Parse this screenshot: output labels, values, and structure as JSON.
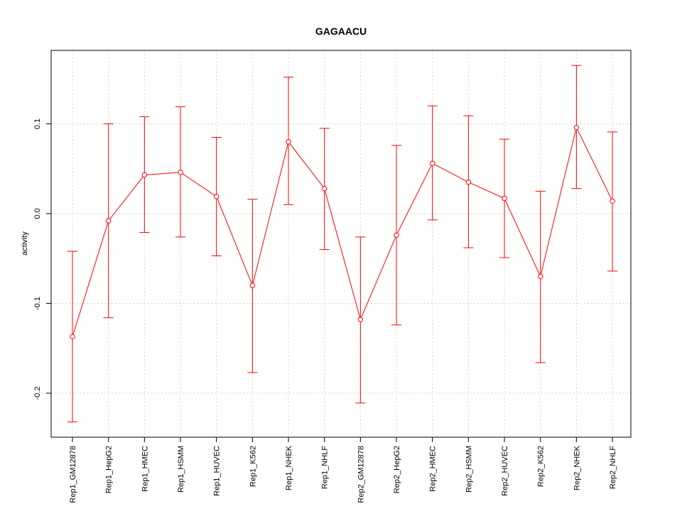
{
  "chart_data": {
    "type": "line",
    "title": "GAGAACU",
    "xlabel": "",
    "ylabel": "activity",
    "ylim": [
      -0.25,
      0.18
    ],
    "y_ticks": [
      -0.2,
      -0.1,
      0.0,
      0.1
    ],
    "y_tick_labels": [
      "-0.2",
      "-0.1",
      "0.0",
      "0.1"
    ],
    "grid": true,
    "series_color": "#ff0000",
    "grid_color": "#d3d3d3",
    "categories": [
      "Rep1_GM12878",
      "Rep1_HepG2",
      "Rep1_HMEC",
      "Rep1_HSMM",
      "Rep1_HUVEC",
      "Rep1_K562",
      "Rep1_NHEK",
      "Rep1_NHLF",
      "Rep2_GM12878",
      "Rep2_HepG2",
      "Rep2_HMEC",
      "Rep2_HSMM",
      "Rep2_HUVEC",
      "Rep2_K562",
      "Rep2_NHEK",
      "Rep2_NHLF"
    ],
    "values": [
      -0.137,
      -0.008,
      0.043,
      0.046,
      0.019,
      -0.08,
      0.08,
      0.028,
      -0.118,
      -0.024,
      0.056,
      0.035,
      0.017,
      -0.07,
      0.096,
      0.014
    ],
    "upper": [
      -0.042,
      0.1,
      0.108,
      0.119,
      0.085,
      0.016,
      0.152,
      0.095,
      -0.026,
      0.076,
      0.12,
      0.109,
      0.083,
      0.025,
      0.165,
      0.091
    ],
    "lower": [
      -0.232,
      -0.116,
      -0.021,
      -0.026,
      -0.047,
      -0.177,
      0.01,
      -0.04,
      -0.211,
      -0.124,
      -0.007,
      -0.038,
      -0.049,
      -0.166,
      0.028,
      -0.064
    ]
  }
}
